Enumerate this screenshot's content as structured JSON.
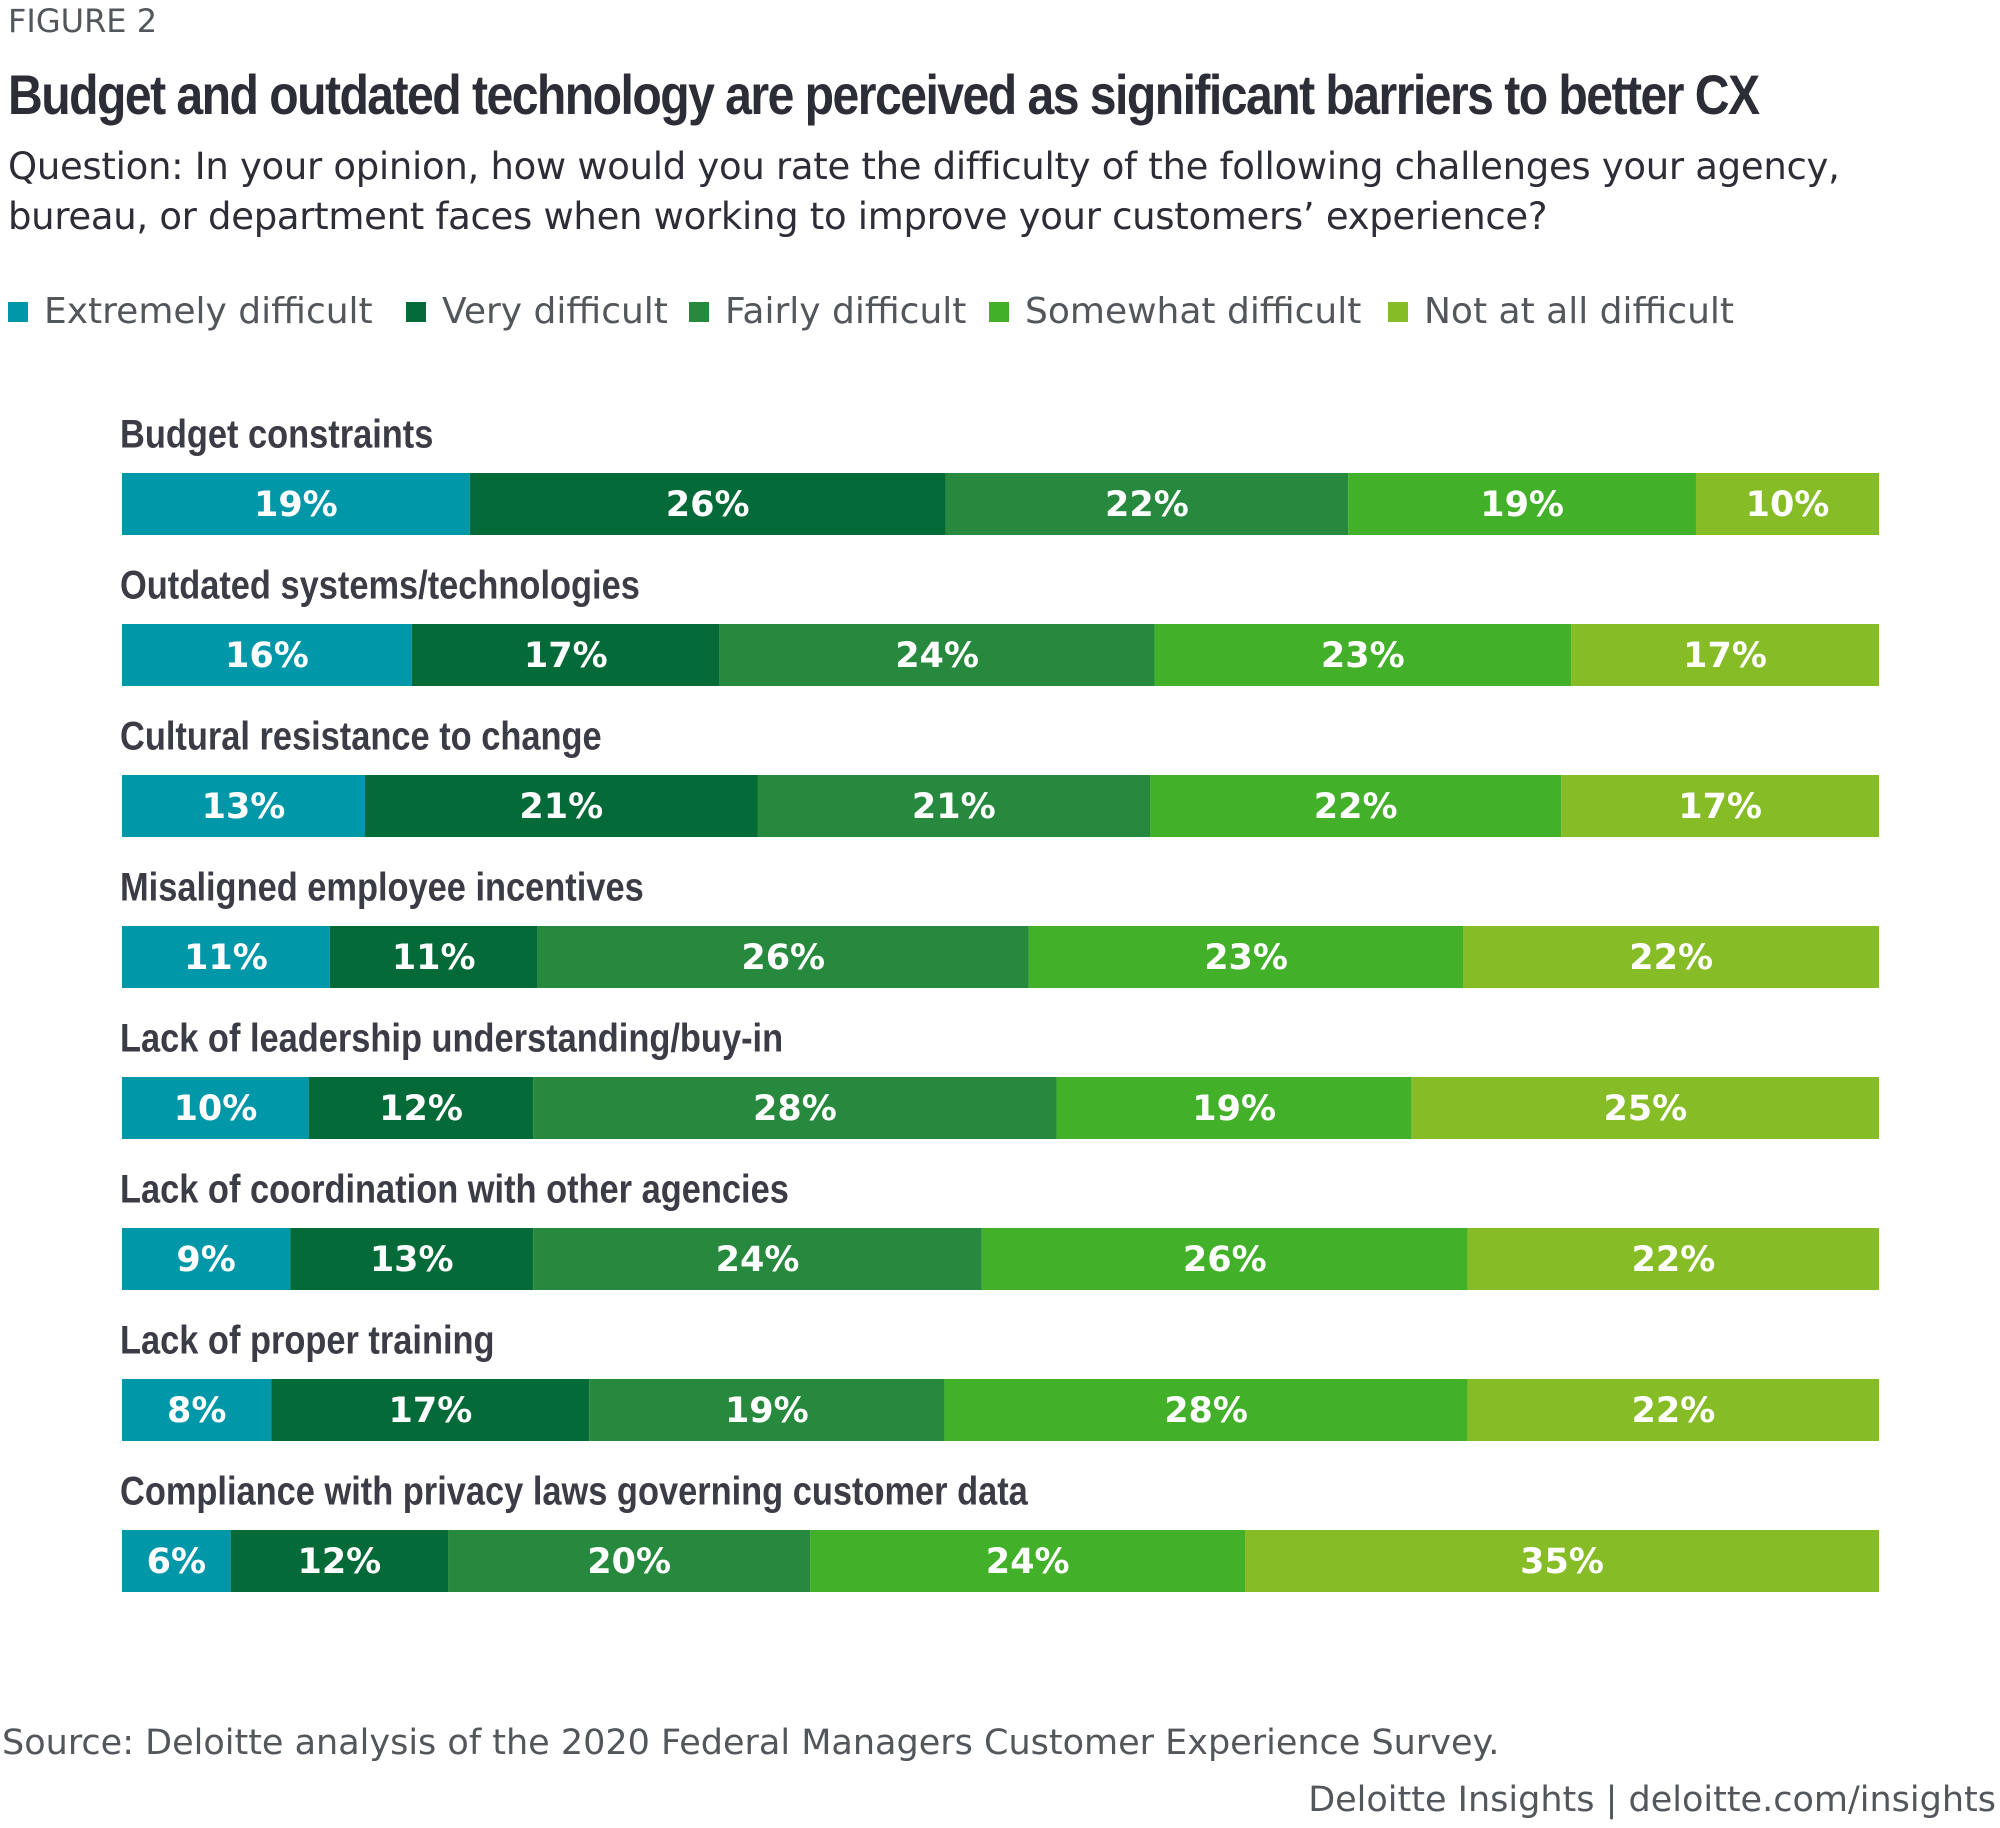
{
  "chart_data": {
    "type": "bar",
    "figure_label": "FIGURE 2",
    "title": "Budget and outdated technology are perceived as significant barriers to better CX",
    "subtitle": "Question: In your opinion, how would you rate the difficulty of the following challenges your agency, bureau, or department faces when working to improve your customers’ experience?",
    "categories": [
      "Budget constraints",
      "Outdated systems/technologies",
      "Cultural resistance to change",
      "Misaligned employee incentives",
      "Lack of leadership understanding/buy-in",
      "Lack of coordination with other agencies",
      "Lack of proper training",
      "Compliance with privacy laws governing customer data"
    ],
    "series": [
      {
        "name": "Extremely difficult",
        "color": "#0097a9",
        "values": [
          19,
          16,
          13,
          11,
          10,
          9,
          8,
          6
        ],
        "value_labels": [
          "19%",
          "16%",
          "13%",
          "11%",
          "10%",
          "9%",
          "8%",
          "6%"
        ]
      },
      {
        "name": "Very difficult",
        "color": "#046a38",
        "values": [
          26,
          17,
          21,
          11,
          12,
          13,
          17,
          12
        ],
        "value_labels": [
          "26%",
          "17%",
          "21%",
          "11%",
          "12%",
          "13%",
          "17%",
          "12%"
        ]
      },
      {
        "name": "Fairly difficult",
        "color": "#26893d",
        "values": [
          22,
          24,
          21,
          26,
          28,
          24,
          19,
          20
        ],
        "value_labels": [
          "22%",
          "24%",
          "21%",
          "26%",
          "28%",
          "24%",
          "19%",
          "20%"
        ]
      },
      {
        "name": "Somewhat difficult",
        "color": "#43b02a",
        "values": [
          19,
          23,
          22,
          23,
          19,
          26,
          28,
          24
        ],
        "value_labels": [
          "19%",
          "23%",
          "22%",
          "23%",
          "19%",
          "26%",
          "28%",
          "24%"
        ]
      },
      {
        "name": "Not at all difficult",
        "color": "#86bc25",
        "values": [
          10,
          17,
          17,
          22,
          25,
          22,
          22,
          35
        ],
        "value_labels": [
          "10%",
          "17%",
          "17%",
          "22%",
          "25%",
          "22%",
          "22%",
          "35%"
        ]
      }
    ],
    "source": "Source: Deloitte analysis of the 2020 Federal Managers Customer Experience Survey.",
    "credit": "Deloitte Insights | deloitte.com/insights"
  }
}
